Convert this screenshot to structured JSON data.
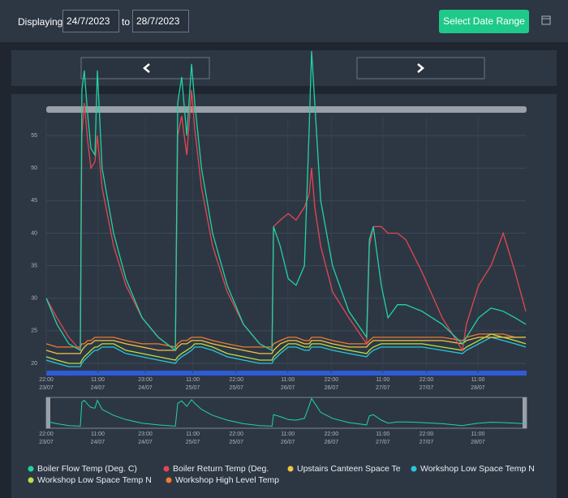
{
  "toolbar": {
    "displaying": "Displaying",
    "from": "24/7/2023",
    "to_label": "to",
    "to": "28/7/2023",
    "button": "Select Date Range"
  },
  "chart_data": {
    "type": "line",
    "x": [
      22.0,
      24.7,
      27.7,
      30.6,
      31.0,
      31.6,
      32.5,
      33.3,
      34.3,
      34.9,
      36.1,
      39.0,
      42.1,
      46.2,
      50.3,
      54.6,
      55.2,
      56.2,
      57.5,
      58.7,
      59.5,
      61.2,
      64.0,
      67.7,
      71.8,
      75.9,
      79.0,
      79.4,
      81.1,
      83.1,
      85.1,
      87.2,
      88.4,
      89.0,
      89.8,
      91.3,
      94.3,
      98.4,
      102.9,
      103.6,
      104.6,
      106.6,
      108.3,
      110.7,
      112.8,
      116.9,
      122.0,
      127.1,
      128.1,
      131.2,
      134.3,
      137.4,
      140.4,
      143.1
    ],
    "xlim": [
      22,
      143.1
    ],
    "xticks": [
      {
        "value": 22,
        "label": "22:00 23/07"
      },
      {
        "value": 35,
        "label": "11:00 24/07"
      },
      {
        "value": 47,
        "label": "23:00 24/07"
      },
      {
        "value": 59,
        "label": "11:00 25/07"
      },
      {
        "value": 70,
        "label": "22:00 25/07"
      },
      {
        "value": 83,
        "label": "11:00 26/07"
      },
      {
        "value": 94,
        "label": "22:00 26/07"
      },
      {
        "value": 107,
        "label": "11:00 27/07"
      },
      {
        "value": 118,
        "label": "22:00 27/07"
      },
      {
        "value": 131,
        "label": "11:00 28/07"
      }
    ],
    "ylim": [
      18.5,
      59
    ],
    "yticks": [
      20,
      25,
      30,
      35,
      40,
      45,
      50,
      55
    ],
    "grid": true,
    "legend": "bottom",
    "series": [
      {
        "name": "Boiler Flow Temp (Deg. C)",
        "color": "#22d3a2",
        "values": [
          30,
          26,
          23,
          22,
          62,
          65,
          58,
          53,
          52,
          65,
          50,
          40,
          33,
          27,
          24,
          22,
          60,
          64,
          55,
          66,
          60,
          50,
          40,
          32,
          26,
          23,
          22,
          41,
          38,
          33,
          32,
          35,
          56,
          68,
          60,
          45,
          35,
          28,
          24,
          39,
          41,
          32,
          27,
          29,
          29,
          28,
          26,
          23,
          24,
          27,
          28.5,
          28,
          27,
          26
        ]
      },
      {
        "name": "Boiler Return Temp (Deg.",
        "color": "#e3474f",
        "values": [
          30,
          27,
          24,
          22,
          55,
          60,
          54,
          50,
          51,
          55,
          47,
          38,
          32,
          27,
          24,
          22,
          55,
          58,
          52,
          62,
          56,
          47,
          38,
          31,
          26,
          23,
          22,
          41,
          42,
          43,
          42,
          44,
          46,
          50,
          44,
          38,
          31,
          27,
          23,
          38,
          41,
          41,
          40,
          40,
          39,
          34,
          27,
          22,
          26,
          32,
          35,
          40,
          34,
          28
        ]
      },
      {
        "name": "Upstairs Canteen Space Te",
        "color": "#f2c443",
        "values": [
          22,
          21.5,
          21.5,
          21.5,
          22,
          22.5,
          23,
          23,
          23.5,
          23.5,
          23.5,
          23.5,
          23,
          22.5,
          22,
          22,
          22.5,
          23,
          23,
          23.5,
          23.5,
          23.5,
          23,
          22.5,
          22,
          21.5,
          21.5,
          22,
          23,
          23.5,
          23.5,
          23,
          23,
          23.5,
          23.5,
          23.5,
          23,
          22.5,
          22.5,
          23,
          23.5,
          23.5,
          23.5,
          23.5,
          23.5,
          23.5,
          23.5,
          23,
          23.5,
          24,
          24,
          24,
          24,
          24
        ]
      },
      {
        "name": "Workshop Low Space Temp N",
        "color": "#2ac6d8",
        "values": [
          20.5,
          20,
          19.5,
          19.5,
          20,
          20.5,
          21,
          21.5,
          22,
          22,
          22.5,
          22.5,
          21.5,
          21,
          20.5,
          20,
          20.5,
          21,
          21.5,
          22,
          22.5,
          22.5,
          22,
          21,
          20.5,
          20,
          20,
          20.5,
          21.5,
          22.5,
          22.5,
          22,
          22,
          22.5,
          22.5,
          22.5,
          22,
          21.5,
          21,
          21.5,
          22,
          22.5,
          22.5,
          22.5,
          22.5,
          22.5,
          22,
          21.5,
          22,
          23,
          24,
          23.5,
          23,
          22.5
        ]
      },
      {
        "name": "Workshop Low Space Temp N",
        "color": "#b9e044",
        "values": [
          21,
          20.5,
          20,
          20,
          20.5,
          21,
          21.5,
          22,
          22.5,
          22.5,
          23,
          23,
          22,
          21.5,
          21,
          20.5,
          21,
          21.5,
          22,
          22.5,
          23,
          23,
          22.5,
          21.5,
          21,
          20.5,
          20.5,
          21,
          22,
          23,
          23,
          22.5,
          22.5,
          23,
          23,
          23,
          22.5,
          22,
          21.5,
          22,
          22.5,
          23,
          23,
          23,
          23,
          23,
          22.5,
          22,
          22.5,
          23.5,
          24.5,
          24,
          23.5,
          23
        ]
      },
      {
        "name": "Workshop High Level Temp",
        "color": "#f27a30",
        "values": [
          23,
          22.5,
          22.5,
          22.5,
          23,
          23,
          23.5,
          23.5,
          24,
          24,
          24,
          24,
          23.5,
          23,
          23,
          22.5,
          23,
          23.5,
          23.5,
          24,
          24,
          24,
          23.5,
          23,
          22.5,
          22.5,
          22.5,
          23,
          23.5,
          24,
          24,
          23.5,
          23.5,
          24,
          24,
          24,
          23.5,
          23,
          23,
          23.5,
          24,
          24,
          24,
          24,
          24,
          24,
          24,
          23.5,
          24,
          24.5,
          24.5,
          24.5,
          24,
          24
        ]
      }
    ]
  }
}
